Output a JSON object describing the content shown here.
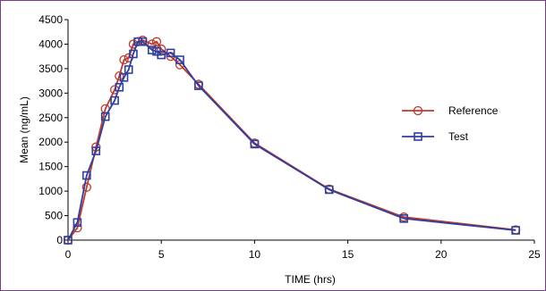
{
  "chart_data": {
    "type": "line",
    "title": "",
    "xlabel": "TIME (hrs)",
    "ylabel": "Mean (ng/mL)",
    "xlim": [
      0,
      25
    ],
    "ylim": [
      0,
      4500
    ],
    "xticks": [
      0,
      5,
      10,
      15,
      20,
      25
    ],
    "yticks": [
      0,
      500,
      1000,
      1500,
      2000,
      2500,
      3000,
      3500,
      4000,
      4500
    ],
    "grid": false,
    "legend_position": "right",
    "series": [
      {
        "name": "Reference",
        "color": "#c0392b",
        "marker": "circle",
        "x": [
          0,
          0.5,
          1,
          1.5,
          2,
          2.5,
          2.75,
          3,
          3.25,
          3.5,
          3.75,
          4,
          4.5,
          4.75,
          5,
          5.5,
          6,
          7,
          10,
          14,
          18,
          24
        ],
        "y": [
          0,
          250,
          1080,
          1900,
          2680,
          3070,
          3350,
          3680,
          3720,
          4000,
          4050,
          4080,
          4000,
          4050,
          3900,
          3750,
          3580,
          3180,
          1980,
          1040,
          470,
          210
        ]
      },
      {
        "name": "Test",
        "color": "#2e3f9f",
        "marker": "square",
        "x": [
          0,
          0.5,
          1,
          1.5,
          2,
          2.5,
          2.75,
          3,
          3.25,
          3.5,
          3.75,
          4,
          4.5,
          4.75,
          5,
          5.5,
          6,
          7,
          10,
          14,
          18,
          24
        ],
        "y": [
          0,
          360,
          1320,
          1820,
          2520,
          2850,
          3120,
          3320,
          3480,
          3800,
          4050,
          4050,
          3880,
          3850,
          3780,
          3820,
          3680,
          3150,
          1960,
          1030,
          440,
          200
        ]
      }
    ]
  }
}
